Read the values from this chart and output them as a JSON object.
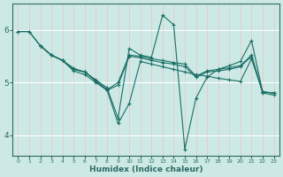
{
  "title": "",
  "xlabel": "Humidex (Indice chaleur)",
  "ylabel": "",
  "bg_color": "#cce9e5",
  "line_color": "#1a6e65",
  "grid_color_v": "#e8c8c8",
  "grid_color_h": "#ffffff",
  "xlim": [
    -0.5,
    23.5
  ],
  "ylim": [
    3.6,
    6.5
  ],
  "yticks": [
    4,
    5,
    6
  ],
  "xticks": [
    0,
    1,
    2,
    3,
    4,
    5,
    6,
    7,
    8,
    9,
    10,
    11,
    12,
    13,
    14,
    15,
    16,
    17,
    18,
    19,
    20,
    21,
    22,
    23
  ],
  "series": [
    {
      "x": [
        0,
        1,
        2,
        3,
        4,
        5,
        6,
        7,
        8,
        9,
        10,
        11,
        12,
        13,
        14,
        15,
        16,
        17,
        18,
        19,
        20,
        21,
        22,
        23
      ],
      "y": [
        5.97,
        5.97,
        5.7,
        5.52,
        5.42,
        5.27,
        5.2,
        5.05,
        4.9,
        4.32,
        5.65,
        5.52,
        5.48,
        6.28,
        6.1,
        3.73,
        4.7,
        5.1,
        5.25,
        5.32,
        5.4,
        5.8,
        4.82,
        4.8
      ]
    },
    {
      "x": [
        0,
        1,
        2,
        3,
        4,
        5,
        6,
        7,
        8,
        9,
        10,
        11,
        12,
        13,
        14,
        15,
        16,
        17,
        18,
        19,
        20,
        21,
        22,
        23
      ],
      "y": [
        5.97,
        5.97,
        5.7,
        5.52,
        5.42,
        5.25,
        5.2,
        5.03,
        4.86,
        4.22,
        4.6,
        5.4,
        5.35,
        5.3,
        5.25,
        5.2,
        5.15,
        5.12,
        5.08,
        5.05,
        5.02,
        5.45,
        4.82,
        4.8
      ]
    },
    {
      "x": [
        2,
        3,
        4,
        5,
        6,
        7,
        8,
        9,
        10,
        11,
        12,
        13,
        14,
        15,
        16,
        17,
        18,
        19,
        20,
        21,
        22,
        23
      ],
      "y": [
        5.7,
        5.52,
        5.42,
        5.25,
        5.2,
        5.03,
        4.86,
        5.0,
        5.52,
        5.5,
        5.45,
        5.42,
        5.38,
        5.35,
        5.12,
        5.22,
        5.25,
        5.28,
        5.32,
        5.52,
        4.82,
        4.8
      ]
    },
    {
      "x": [
        2,
        3,
        4,
        5,
        6,
        7,
        8,
        9,
        10,
        11,
        12,
        13,
        14,
        15,
        16,
        17,
        18,
        19,
        20,
        21,
        22,
        23
      ],
      "y": [
        5.7,
        5.52,
        5.42,
        5.22,
        5.15,
        5.0,
        4.85,
        4.95,
        5.5,
        5.47,
        5.42,
        5.38,
        5.35,
        5.3,
        5.1,
        5.2,
        5.22,
        5.25,
        5.3,
        5.5,
        4.8,
        4.76
      ]
    }
  ]
}
